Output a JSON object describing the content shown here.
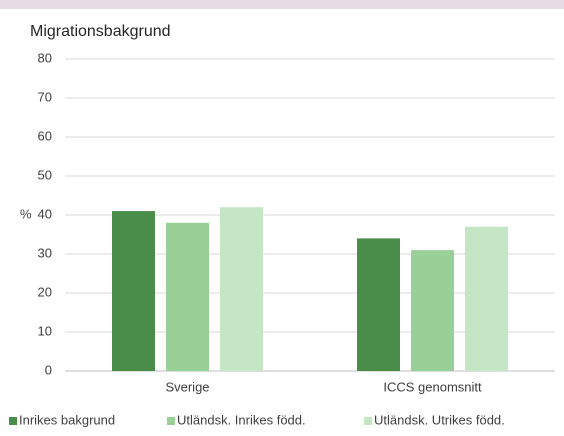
{
  "chart_data": {
    "type": "bar",
    "title": "Migrationsbakgrund",
    "y_label": "%",
    "categories": [
      "Sverige",
      "ICCS genomsnitt"
    ],
    "series": [
      {
        "name": "Inrikes bakgrund",
        "color": "#4a8c4a",
        "values": [
          41,
          34
        ]
      },
      {
        "name": "Utländsk. Inrikes född.",
        "color": "#99d098",
        "values": [
          38,
          31
        ]
      },
      {
        "name": "Utländsk. Utrikes född.",
        "color": "#c5e6c5",
        "values": [
          42,
          37
        ]
      }
    ],
    "ylim": [
      0,
      80
    ],
    "yticks": [
      0,
      10,
      20,
      30,
      40,
      50,
      60,
      70,
      80
    ],
    "grid": true,
    "legend": "bottom"
  }
}
